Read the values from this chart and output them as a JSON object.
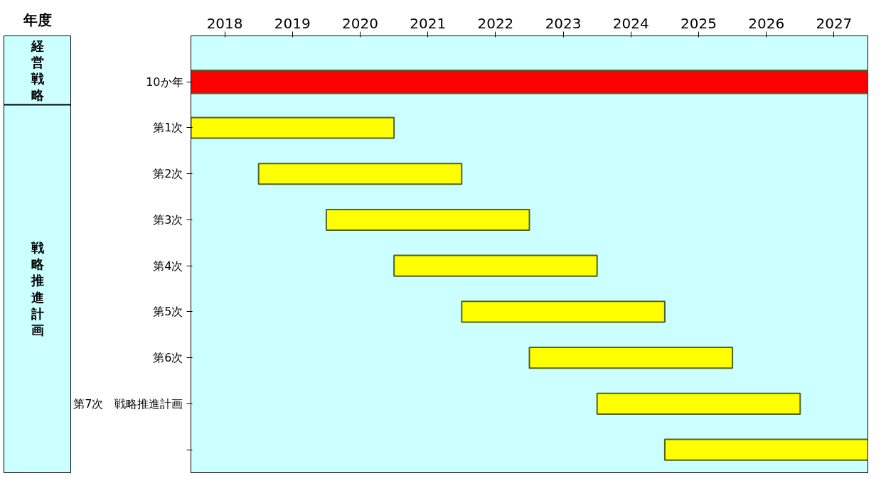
{
  "chart_data": {
    "type": "bar",
    "orientation": "horizontal",
    "xlabel": "年度",
    "categories": [
      "10か年",
      "第1次",
      "第2次",
      "第3次",
      "第4次",
      "第5次",
      "第6次",
      "第7次　戦略推進計画",
      null
    ],
    "base": [
      2017.5,
      2017.5,
      2018.5,
      2019.5,
      2020.5,
      2021.5,
      2022.5,
      2023.5,
      2024.5
    ],
    "values": [
      10,
      3,
      3,
      3,
      3,
      3,
      3,
      3,
      3
    ],
    "colors": [
      "#ff0000",
      "#ffff00",
      "#ffff00",
      "#ffff00",
      "#ffff00",
      "#ffff00",
      "#ffff00",
      "#ffff00",
      "#ffff00"
    ],
    "xlim": [
      2017.5,
      2027.5
    ],
    "xticks": [
      2018,
      2019,
      2020,
      2021,
      2022,
      2023,
      2024,
      2025,
      2026,
      2027
    ],
    "annotations": [
      "経営戦略",
      "戦略推進計画"
    ],
    "grid": false
  }
}
